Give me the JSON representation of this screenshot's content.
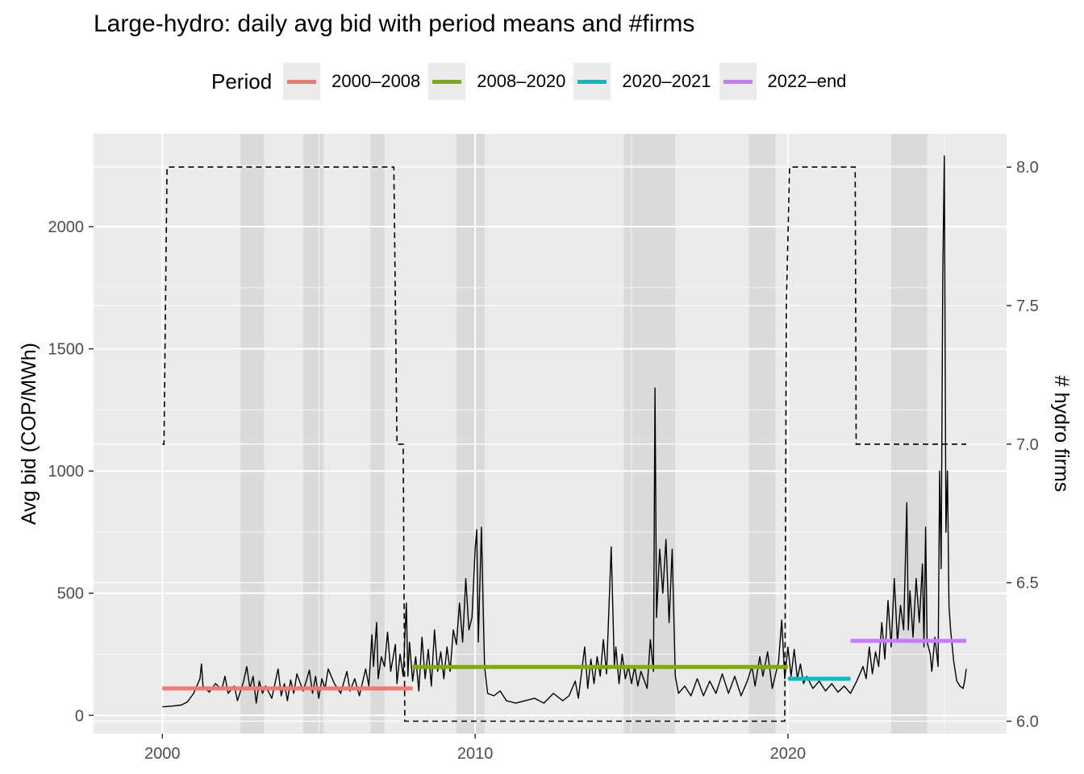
{
  "chart_data": {
    "type": "line",
    "title": "Large-hydro: daily avg bid with period means and #firms",
    "xlabel": "",
    "ylabel": "Avg bid (COP/MWh)",
    "y2label": "# hydro firms",
    "xlim": [
      1997.8,
      2026.99
    ],
    "ylim": [
      -75,
      2380
    ],
    "y2lim": [
      5.955,
      8.12
    ],
    "x_ticks": [
      2000,
      2010,
      2020
    ],
    "y_ticks": [
      0,
      500,
      1000,
      1500,
      2000
    ],
    "y2_ticks": [
      6.0,
      6.5,
      7.0,
      7.5,
      8.0
    ],
    "y2_tick_labels": [
      "6.0",
      "6.5",
      "7.0",
      "7.5",
      "8.0"
    ],
    "grid": true,
    "legend": {
      "title": "Period",
      "position": "top",
      "entries": [
        {
          "name": "2000–2008",
          "color": "#F8766D"
        },
        {
          "name": "2008–2020",
          "color": "#7CAE00"
        },
        {
          "name": "2020–2021",
          "color": "#00BFC4"
        },
        {
          "name": "2022–end",
          "color": "#C77CFF"
        }
      ]
    },
    "shaded_periods": [
      [
        2002.5,
        2003.25
      ],
      [
        2004.5,
        2005.15
      ],
      [
        2006.65,
        2007.1
      ],
      [
        2009.4,
        2010.3
      ],
      [
        2014.75,
        2016.4
      ],
      [
        2018.75,
        2019.6
      ],
      [
        2023.3,
        2024.45
      ]
    ],
    "period_means": [
      {
        "name": "2000–2008",
        "x": [
          2000.0,
          2008.0
        ],
        "y": 110
      },
      {
        "name": "2008–2020",
        "x": [
          2008.0,
          2020.0
        ],
        "y": 198
      },
      {
        "name": "2020–2021",
        "x": [
          2020.0,
          2022.0
        ],
        "y": 150
      },
      {
        "name": "2022–end",
        "x": [
          2022.0,
          2025.7
        ],
        "y": 305
      }
    ],
    "firms": {
      "name": "# hydro firms",
      "style": "dashed",
      "x": [
        2000.0,
        2000.05,
        2000.15,
        2007.4,
        2007.5,
        2007.7,
        2007.75,
        2019.9,
        2019.95,
        2020.05,
        2022.15,
        2022.18,
        2025.7
      ],
      "y": [
        7,
        7,
        8,
        8,
        7,
        7,
        6,
        6,
        7.5,
        8,
        8,
        7,
        7
      ]
    },
    "series": [
      {
        "name": "Avg bid",
        "style": "solid",
        "points": [
          [
            2000.0,
            35
          ],
          [
            2000.3,
            38
          ],
          [
            2000.6,
            42
          ],
          [
            2000.8,
            55
          ],
          [
            2001.0,
            90
          ],
          [
            2001.2,
            150
          ],
          [
            2001.25,
            210
          ],
          [
            2001.3,
            120
          ],
          [
            2001.5,
            95
          ],
          [
            2001.7,
            130
          ],
          [
            2001.9,
            105
          ],
          [
            2002.0,
            160
          ],
          [
            2002.1,
            90
          ],
          [
            2002.3,
            120
          ],
          [
            2002.4,
            60
          ],
          [
            2002.6,
            140
          ],
          [
            2002.7,
            200
          ],
          [
            2002.8,
            110
          ],
          [
            2002.9,
            160
          ],
          [
            2003.0,
            50
          ],
          [
            2003.1,
            140
          ],
          [
            2003.2,
            90
          ],
          [
            2003.3,
            120
          ],
          [
            2003.5,
            70
          ],
          [
            2003.7,
            190
          ],
          [
            2003.8,
            80
          ],
          [
            2003.9,
            130
          ],
          [
            2004.0,
            60
          ],
          [
            2004.1,
            145
          ],
          [
            2004.2,
            90
          ],
          [
            2004.3,
            170
          ],
          [
            2004.5,
            100
          ],
          [
            2004.6,
            140
          ],
          [
            2004.7,
            185
          ],
          [
            2004.8,
            90
          ],
          [
            2004.9,
            160
          ],
          [
            2005.0,
            70
          ],
          [
            2005.1,
            150
          ],
          [
            2005.2,
            110
          ],
          [
            2005.3,
            190
          ],
          [
            2005.5,
            130
          ],
          [
            2005.7,
            90
          ],
          [
            2005.9,
            180
          ],
          [
            2006.0,
            100
          ],
          [
            2006.15,
            150
          ],
          [
            2006.3,
            80
          ],
          [
            2006.5,
            190
          ],
          [
            2006.6,
            120
          ],
          [
            2006.7,
            330
          ],
          [
            2006.75,
            200
          ],
          [
            2006.85,
            380
          ],
          [
            2006.9,
            150
          ],
          [
            2007.0,
            240
          ],
          [
            2007.1,
            200
          ],
          [
            2007.2,
            340
          ],
          [
            2007.3,
            180
          ],
          [
            2007.45,
            290
          ],
          [
            2007.5,
            130
          ],
          [
            2007.6,
            250
          ],
          [
            2007.7,
            160
          ],
          [
            2007.8,
            460
          ],
          [
            2007.85,
            160
          ],
          [
            2007.9,
            300
          ],
          [
            2008.0,
            140
          ],
          [
            2008.1,
            240
          ],
          [
            2008.2,
            100
          ],
          [
            2008.3,
            320
          ],
          [
            2008.4,
            150
          ],
          [
            2008.5,
            270
          ],
          [
            2008.6,
            120
          ],
          [
            2008.7,
            350
          ],
          [
            2008.8,
            180
          ],
          [
            2008.9,
            260
          ],
          [
            2009.0,
            150
          ],
          [
            2009.1,
            280
          ],
          [
            2009.2,
            180
          ],
          [
            2009.3,
            350
          ],
          [
            2009.4,
            290
          ],
          [
            2009.5,
            460
          ],
          [
            2009.6,
            300
          ],
          [
            2009.7,
            560
          ],
          [
            2009.8,
            350
          ],
          [
            2009.9,
            400
          ],
          [
            2010.0,
            680
          ],
          [
            2010.05,
            760
          ],
          [
            2010.1,
            300
          ],
          [
            2010.2,
            770
          ],
          [
            2010.25,
            480
          ],
          [
            2010.3,
            200
          ],
          [
            2010.4,
            90
          ],
          [
            2010.6,
            80
          ],
          [
            2010.8,
            100
          ],
          [
            2011.0,
            60
          ],
          [
            2011.3,
            50
          ],
          [
            2011.6,
            60
          ],
          [
            2011.9,
            70
          ],
          [
            2012.2,
            50
          ],
          [
            2012.5,
            90
          ],
          [
            2012.8,
            60
          ],
          [
            2013.0,
            80
          ],
          [
            2013.2,
            140
          ],
          [
            2013.3,
            70
          ],
          [
            2013.5,
            280
          ],
          [
            2013.6,
            110
          ],
          [
            2013.7,
            230
          ],
          [
            2013.8,
            130
          ],
          [
            2013.9,
            240
          ],
          [
            2014.0,
            160
          ],
          [
            2014.1,
            310
          ],
          [
            2014.2,
            170
          ],
          [
            2014.35,
            690
          ],
          [
            2014.45,
            200
          ],
          [
            2014.5,
            280
          ],
          [
            2014.6,
            130
          ],
          [
            2014.7,
            250
          ],
          [
            2014.8,
            150
          ],
          [
            2014.9,
            200
          ],
          [
            2015.0,
            130
          ],
          [
            2015.1,
            200
          ],
          [
            2015.2,
            120
          ],
          [
            2015.3,
            180
          ],
          [
            2015.5,
            110
          ],
          [
            2015.6,
            310
          ],
          [
            2015.7,
            180
          ],
          [
            2015.75,
            1340
          ],
          [
            2015.8,
            400
          ],
          [
            2015.9,
            680
          ],
          [
            2016.0,
            500
          ],
          [
            2016.1,
            720
          ],
          [
            2016.2,
            380
          ],
          [
            2016.3,
            680
          ],
          [
            2016.4,
            160
          ],
          [
            2016.5,
            90
          ],
          [
            2016.7,
            120
          ],
          [
            2016.9,
            80
          ],
          [
            2017.1,
            150
          ],
          [
            2017.3,
            80
          ],
          [
            2017.5,
            140
          ],
          [
            2017.7,
            90
          ],
          [
            2017.9,
            170
          ],
          [
            2018.1,
            90
          ],
          [
            2018.3,
            160
          ],
          [
            2018.5,
            80
          ],
          [
            2018.7,
            140
          ],
          [
            2018.85,
            200
          ],
          [
            2018.95,
            120
          ],
          [
            2019.1,
            240
          ],
          [
            2019.2,
            160
          ],
          [
            2019.35,
            260
          ],
          [
            2019.5,
            110
          ],
          [
            2019.7,
            220
          ],
          [
            2019.8,
            390
          ],
          [
            2019.9,
            150
          ],
          [
            2020.0,
            280
          ],
          [
            2020.1,
            160
          ],
          [
            2020.2,
            270
          ],
          [
            2020.3,
            150
          ],
          [
            2020.4,
            210
          ],
          [
            2020.5,
            130
          ],
          [
            2020.6,
            160
          ],
          [
            2020.8,
            110
          ],
          [
            2021.0,
            140
          ],
          [
            2021.2,
            100
          ],
          [
            2021.4,
            130
          ],
          [
            2021.6,
            95
          ],
          [
            2021.8,
            120
          ],
          [
            2022.0,
            90
          ],
          [
            2022.2,
            140
          ],
          [
            2022.4,
            200
          ],
          [
            2022.5,
            150
          ],
          [
            2022.6,
            280
          ],
          [
            2022.7,
            170
          ],
          [
            2022.8,
            260
          ],
          [
            2022.9,
            200
          ],
          [
            2023.0,
            380
          ],
          [
            2023.1,
            230
          ],
          [
            2023.2,
            470
          ],
          [
            2023.3,
            280
          ],
          [
            2023.4,
            560
          ],
          [
            2023.5,
            300
          ],
          [
            2023.6,
            450
          ],
          [
            2023.7,
            350
          ],
          [
            2023.8,
            870
          ],
          [
            2023.85,
            350
          ],
          [
            2023.9,
            510
          ],
          [
            2024.0,
            320
          ],
          [
            2024.1,
            560
          ],
          [
            2024.2,
            380
          ],
          [
            2024.3,
            620
          ],
          [
            2024.35,
            280
          ],
          [
            2024.4,
            770
          ],
          [
            2024.45,
            300
          ],
          [
            2024.55,
            250
          ],
          [
            2024.6,
            180
          ],
          [
            2024.7,
            320
          ],
          [
            2024.8,
            200
          ],
          [
            2024.85,
            1000
          ],
          [
            2024.9,
            600
          ],
          [
            2024.95,
            1800
          ],
          [
            2025.0,
            2290
          ],
          [
            2025.05,
            750
          ],
          [
            2025.1,
            1000
          ],
          [
            2025.15,
            450
          ],
          [
            2025.2,
            350
          ],
          [
            2025.3,
            220
          ],
          [
            2025.4,
            140
          ],
          [
            2025.5,
            120
          ],
          [
            2025.6,
            110
          ],
          [
            2025.65,
            140
          ],
          [
            2025.7,
            190
          ]
        ]
      }
    ]
  }
}
